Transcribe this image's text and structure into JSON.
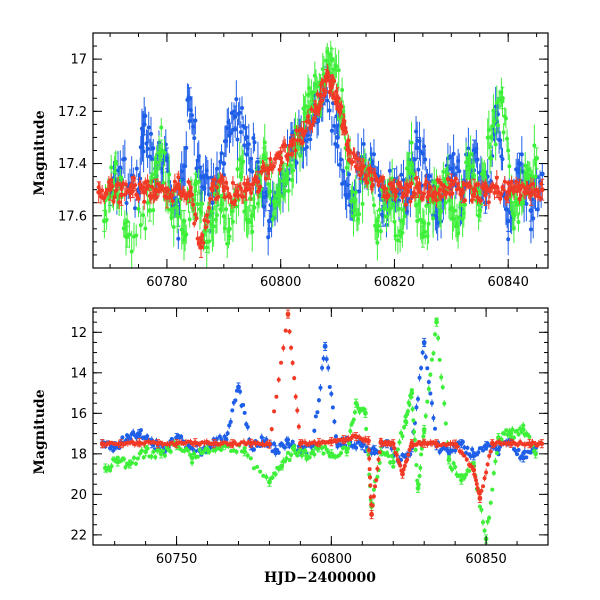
{
  "colors": {
    "blue": "#1f5fe8",
    "green": "#3ef03a",
    "red": "#f03a26",
    "frame": "#000000"
  },
  "chart_data": [
    {
      "type": "scatter",
      "title": "",
      "xlabel": "",
      "ylabel": "Magnitude",
      "xlim": [
        60767,
        60847
      ],
      "ylim": [
        17.8,
        16.9
      ],
      "y_inverted": true,
      "xticks": [
        "60780",
        "60800",
        "60820",
        "60840"
      ],
      "yticks": [
        "17",
        "17.2",
        "17.4",
        "17.6"
      ],
      "grid": false,
      "legend": "none",
      "series_colors": [
        "blue",
        "green",
        "red"
      ],
      "notes_on_data": "dense light curve; baseline ~17.5 mag with outburst peaking ~17.05 mag near HJD 60808",
      "series": [
        {
          "color": "blue",
          "points": [
            [
              60770,
              17.52
            ],
            [
              60772,
              17.46
            ],
            [
              60775,
              17.5
            ],
            [
              60776,
              17.25
            ],
            [
              60778,
              17.42
            ],
            [
              60780,
              17.38
            ],
            [
              60782,
              17.6
            ],
            [
              60784,
              17.15
            ],
            [
              60786,
              17.45
            ],
            [
              60788,
              17.55
            ],
            [
              60790,
              17.4
            ],
            [
              60792,
              17.22
            ],
            [
              60794,
              17.3
            ],
            [
              60796,
              17.42
            ],
            [
              60798,
              17.62
            ],
            [
              60800,
              17.47
            ],
            [
              60802,
              17.35
            ],
            [
              60804,
              17.28
            ],
            [
              60806,
              17.18
            ],
            [
              60808,
              17.07
            ],
            [
              60810,
              17.3
            ],
            [
              60812,
              17.52
            ],
            [
              60814,
              17.42
            ],
            [
              60816,
              17.4
            ],
            [
              60818,
              17.6
            ],
            [
              60820,
              17.46
            ],
            [
              60822,
              17.52
            ],
            [
              60824,
              17.34
            ],
            [
              60826,
              17.48
            ],
            [
              60828,
              17.58
            ],
            [
              60830,
              17.42
            ],
            [
              60832,
              17.5
            ],
            [
              60834,
              17.35
            ],
            [
              60836,
              17.55
            ],
            [
              60838,
              17.24
            ],
            [
              60840,
              17.62
            ],
            [
              60842,
              17.4
            ],
            [
              60844,
              17.58
            ],
            [
              60846,
              17.44
            ]
          ]
        },
        {
          "color": "green",
          "points": [
            [
              60769,
              17.62
            ],
            [
              60771,
              17.4
            ],
            [
              60773,
              17.68
            ],
            [
              60777,
              17.58
            ],
            [
              60779,
              17.35
            ],
            [
              60781,
              17.55
            ],
            [
              60783,
              17.62
            ],
            [
              60785,
              17.48
            ],
            [
              60787,
              17.7
            ],
            [
              60789,
              17.52
            ],
            [
              60791,
              17.65
            ],
            [
              60793,
              17.45
            ],
            [
              60795,
              17.6
            ],
            [
              60797,
              17.38
            ],
            [
              60799,
              17.56
            ],
            [
              60801,
              17.44
            ],
            [
              60803,
              17.32
            ],
            [
              60805,
              17.2
            ],
            [
              60807,
              17.1
            ],
            [
              60809,
              17.0
            ],
            [
              60811,
              17.22
            ],
            [
              60813,
              17.58
            ],
            [
              60815,
              17.45
            ],
            [
              60817,
              17.62
            ],
            [
              60819,
              17.5
            ],
            [
              60821,
              17.66
            ],
            [
              60823,
              17.4
            ],
            [
              60825,
              17.68
            ],
            [
              60827,
              17.55
            ],
            [
              60829,
              17.46
            ],
            [
              60831,
              17.64
            ],
            [
              60833,
              17.42
            ],
            [
              60835,
              17.58
            ],
            [
              60837,
              17.3
            ],
            [
              60839,
              17.15
            ],
            [
              60841,
              17.6
            ],
            [
              60843,
              17.48
            ],
            [
              60845,
              17.38
            ]
          ]
        },
        {
          "color": "red",
          "points": [
            [
              60768,
              17.51
            ],
            [
              60770,
              17.5
            ],
            [
              60772,
              17.52
            ],
            [
              60774,
              17.49
            ],
            [
              60776,
              17.51
            ],
            [
              60778,
              17.5
            ],
            [
              60780,
              17.53
            ],
            [
              60782,
              17.48
            ],
            [
              60784,
              17.51
            ],
            [
              60786,
              17.72
            ],
            [
              60788,
              17.5
            ],
            [
              60790,
              17.49
            ],
            [
              60792,
              17.52
            ],
            [
              60794,
              17.5
            ],
            [
              60796,
              17.47
            ],
            [
              60798,
              17.42
            ],
            [
              60800,
              17.38
            ],
            [
              60802,
              17.33
            ],
            [
              60804,
              17.28
            ],
            [
              60806,
              17.2
            ],
            [
              60807,
              17.14
            ],
            [
              60808,
              17.08
            ],
            [
              60809,
              17.1
            ],
            [
              60810,
              17.15
            ],
            [
              60811,
              17.25
            ],
            [
              60812,
              17.35
            ],
            [
              60814,
              17.42
            ],
            [
              60816,
              17.46
            ],
            [
              60818,
              17.49
            ],
            [
              60820,
              17.5
            ],
            [
              60822,
              17.52
            ],
            [
              60824,
              17.49
            ],
            [
              60826,
              17.51
            ],
            [
              60828,
              17.5
            ],
            [
              60830,
              17.48
            ],
            [
              60832,
              17.51
            ],
            [
              60834,
              17.5
            ],
            [
              60836,
              17.52
            ],
            [
              60838,
              17.49
            ],
            [
              60840,
              17.51
            ],
            [
              60842,
              17.5
            ],
            [
              60844,
              17.52
            ],
            [
              60846,
              17.5
            ]
          ]
        }
      ]
    },
    {
      "type": "scatter",
      "title": "",
      "xlabel": "HJD−2400000",
      "ylabel": "Magnitude",
      "xlim": [
        60723,
        60870
      ],
      "ylim": [
        22.5,
        10.8
      ],
      "y_inverted": true,
      "xticks": [
        "60750",
        "60800",
        "60850"
      ],
      "yticks": [
        "12",
        "14",
        "16",
        "18",
        "20",
        "22"
      ],
      "grid": false,
      "legend": "none",
      "series_colors": [
        "blue",
        "green",
        "red"
      ],
      "series": [
        {
          "color": "blue",
          "points": [
            [
              60726,
              17.5
            ],
            [
              60730,
              17.6
            ],
            [
              60734,
              17.3
            ],
            [
              60738,
              17.0
            ],
            [
              60742,
              17.5
            ],
            [
              60746,
              17.8
            ],
            [
              60750,
              17.2
            ],
            [
              60754,
              17.6
            ],
            [
              60758,
              17.9
            ],
            [
              60762,
              17.5
            ],
            [
              60766,
              17.3
            ],
            [
              60770,
              14.7
            ],
            [
              60774,
              17.6
            ],
            [
              60778,
              17.4
            ],
            [
              60782,
              17.8
            ],
            [
              60786,
              17.5
            ],
            [
              60790,
              17.9
            ],
            [
              60794,
              17.6
            ],
            [
              60798,
              12.7
            ],
            [
              60802,
              17.5
            ],
            [
              60806,
              17.4
            ],
            [
              60810,
              17.6
            ],
            [
              60814,
              17.8
            ],
            [
              60818,
              17.5
            ],
            [
              60822,
              18.3
            ],
            [
              60826,
              17.7
            ],
            [
              60830,
              12.5
            ],
            [
              60834,
              17.6
            ],
            [
              60838,
              17.9
            ],
            [
              60842,
              17.5
            ],
            [
              60846,
              18.1
            ],
            [
              60850,
              17.6
            ],
            [
              60854,
              17.8
            ],
            [
              60858,
              17.4
            ],
            [
              60862,
              18.2
            ],
            [
              60866,
              17.7
            ]
          ]
        },
        {
          "color": "green",
          "points": [
            [
              60727,
              18.7
            ],
            [
              60731,
              18.4
            ],
            [
              60735,
              18.5
            ],
            [
              60740,
              17.9
            ],
            [
              60745,
              18.0
            ],
            [
              60750,
              17.6
            ],
            [
              60755,
              18.2
            ],
            [
              60760,
              17.8
            ],
            [
              60765,
              17.6
            ],
            [
              60772,
              17.9
            ],
            [
              60780,
              19.4
            ],
            [
              60784,
              18.6
            ],
            [
              60788,
              17.8
            ],
            [
              60792,
              18.1
            ],
            [
              60796,
              17.7
            ],
            [
              60800,
              18.0
            ],
            [
              60805,
              17.9
            ],
            [
              60808,
              15.5
            ],
            [
              60811,
              16.0
            ],
            [
              60813,
              20.6
            ],
            [
              60816,
              17.9
            ],
            [
              60820,
              18.4
            ],
            [
              60824,
              16.4
            ],
            [
              60826,
              15.0
            ],
            [
              60828,
              19.7
            ],
            [
              60830,
              16.8
            ],
            [
              60834,
              11.5
            ],
            [
              60838,
              18.3
            ],
            [
              60842,
              19.3
            ],
            [
              60846,
              18.6
            ],
            [
              60850,
              22.2
            ],
            [
              60854,
              17.2
            ],
            [
              60858,
              17.0
            ],
            [
              60862,
              16.8
            ],
            [
              60866,
              18.0
            ]
          ]
        },
        {
          "color": "red",
          "points": [
            [
              60726,
              17.5
            ],
            [
              60732,
              17.5
            ],
            [
              60738,
              17.45
            ],
            [
              60744,
              17.5
            ],
            [
              60750,
              17.5
            ],
            [
              60756,
              17.45
            ],
            [
              60762,
              17.5
            ],
            [
              60768,
              17.5
            ],
            [
              60774,
              17.48
            ],
            [
              60780,
              17.52
            ],
            [
              60786,
              11.1
            ],
            [
              60790,
              17.5
            ],
            [
              60796,
              17.45
            ],
            [
              60800,
              17.4
            ],
            [
              60804,
              17.3
            ],
            [
              60808,
              17.15
            ],
            [
              60812,
              17.35
            ],
            [
              60813,
              21.0
            ],
            [
              60816,
              17.45
            ],
            [
              60820,
              17.5
            ],
            [
              60823,
              19.0
            ],
            [
              60826,
              17.5
            ],
            [
              60830,
              17.48
            ],
            [
              60834,
              17.5
            ],
            [
              60840,
              17.52
            ],
            [
              60846,
              18.8
            ],
            [
              60848,
              20.2
            ],
            [
              60852,
              17.5
            ],
            [
              60858,
              17.48
            ],
            [
              60864,
              17.5
            ],
            [
              60868,
              17.5
            ]
          ]
        }
      ]
    }
  ]
}
